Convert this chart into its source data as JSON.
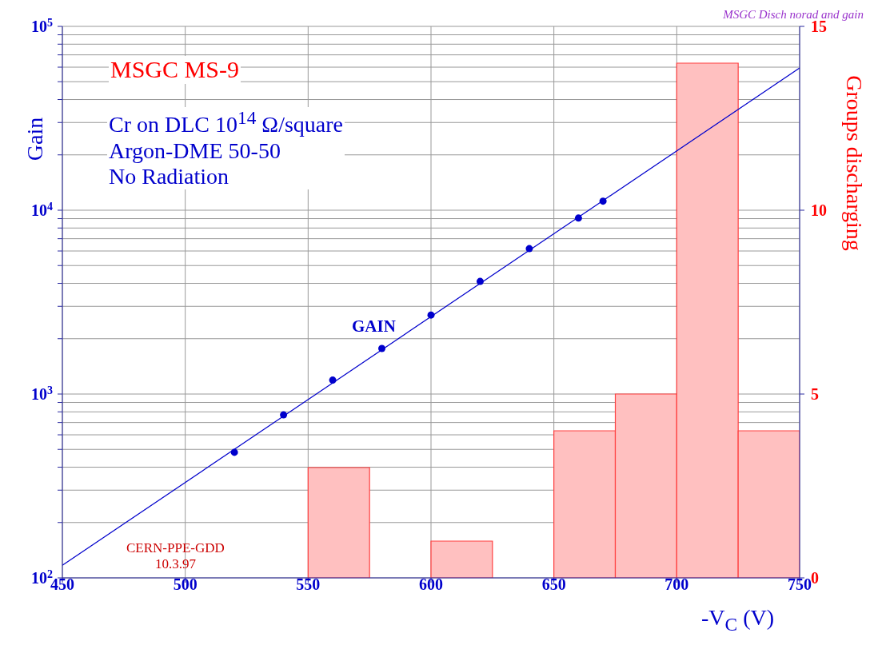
{
  "chart_data": {
    "type": "scatter",
    "xlabel": "-V$_{C}$ (V)",
    "ylabel": "Gain",
    "y2label": "Groups discharging",
    "annotations": [
      "MSGC MS-9",
      "Cr on DLC 10$^{14}$ Ω/square\nArgon-DME  50-50\nNo Radiation",
      "CERN-PPE-GDD\n10.3.97",
      "MSGC Disch norad and gain"
    ],
    "series": [
      {
        "type": "histogram",
        "axis": "y2",
        "color": "#ffc0c0",
        "bins": [
          550,
          575,
          600,
          625,
          650,
          675,
          700,
          725,
          750
        ],
        "values": [
          3,
          0,
          1,
          0,
          4,
          5,
          14,
          4
        ]
      },
      {
        "name": "GAIN",
        "color": "#0000cc",
        "marker": "circle",
        "x": [
          520,
          540,
          560,
          580,
          600,
          620,
          640,
          660,
          670
        ],
        "values": [
          482,
          770,
          1190,
          1770,
          2690,
          4100,
          6180,
          9060,
          11200
        ]
      },
      {
        "type": "line",
        "color": "#0000cc",
        "line_style": "solid",
        "x": [
          450,
          750
        ],
        "values": [
          117,
          59400
        ]
      }
    ],
    "xlim": [
      450,
      750
    ],
    "xticks": [
      450,
      500,
      550,
      600,
      650,
      700,
      750
    ],
    "ylim": [
      100,
      100000
    ],
    "yticks": [
      {
        "value": 100,
        "label": "10$^{2}$"
      },
      {
        "value": 200,
        "label": null
      },
      {
        "value": 300,
        "label": null
      },
      {
        "value": 400,
        "label": null
      },
      {
        "value": 500,
        "label": null
      },
      {
        "value": 600,
        "label": null
      },
      {
        "value": 700,
        "label": null
      },
      {
        "value": 800,
        "label": null
      },
      {
        "value": 900,
        "label": null
      },
      {
        "value": 1000,
        "label": "10$^{3}$"
      },
      {
        "value": 2000,
        "label": null
      },
      {
        "value": 3000,
        "label": null
      },
      {
        "value": 4000,
        "label": null
      },
      {
        "value": 5000,
        "label": null
      },
      {
        "value": 6000,
        "label": null
      },
      {
        "value": 7000,
        "label": null
      },
      {
        "value": 8000,
        "label": null
      },
      {
        "value": 9000,
        "label": null
      },
      {
        "value": 10000,
        "label": "10$^{4}$"
      },
      {
        "value": 20000,
        "label": null
      },
      {
        "value": 30000,
        "label": null
      },
      {
        "value": 40000,
        "label": null
      },
      {
        "value": 50000,
        "label": null
      },
      {
        "value": 60000,
        "label": null
      },
      {
        "value": 70000,
        "label": null
      },
      {
        "value": 80000,
        "label": null
      },
      {
        "value": 90000,
        "label": null
      },
      {
        "value": 100000,
        "label": "10$^{5}$"
      }
    ],
    "y2lim": [
      0,
      15
    ],
    "y2ticks": [
      0,
      5,
      10,
      15
    ],
    "log": "y",
    "grid": true,
    "legend": false
  }
}
